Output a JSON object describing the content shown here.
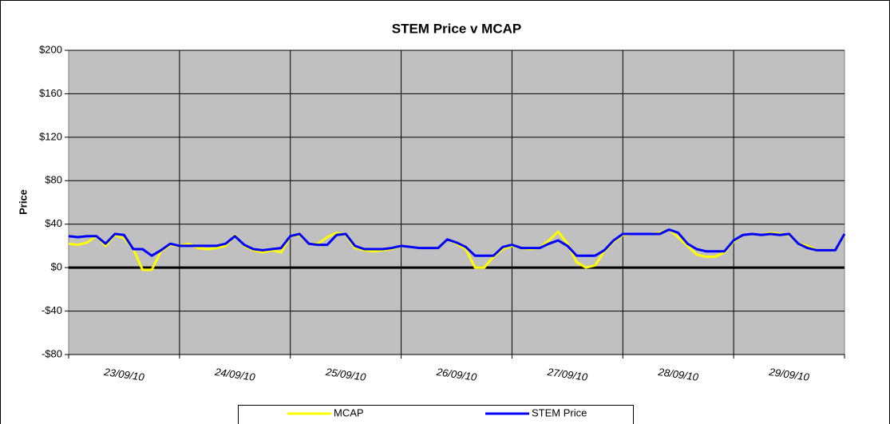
{
  "chart_data": {
    "type": "line",
    "title": "STEM Price v MCAP",
    "y_label": "Price",
    "categories": [
      null,
      null,
      null,
      null,
      null,
      null,
      "23/09/10",
      null,
      null,
      null,
      null,
      null,
      null,
      null,
      null,
      null,
      null,
      null,
      "24/09/10",
      null,
      null,
      null,
      null,
      null,
      null,
      null,
      null,
      null,
      null,
      null,
      "25/09/10",
      null,
      null,
      null,
      null,
      null,
      null,
      null,
      null,
      null,
      null,
      null,
      "26/09/10",
      null,
      null,
      null,
      null,
      null,
      null,
      null,
      null,
      null,
      null,
      null,
      "27/09/10",
      null,
      null,
      null,
      null,
      null,
      null,
      null,
      null,
      null,
      null,
      null,
      "28/09/10",
      null,
      null,
      null,
      null,
      null,
      null,
      null,
      null,
      null,
      null,
      null,
      "29/09/10",
      null,
      null,
      null,
      null,
      null,
      null
    ],
    "series": [
      {
        "name": "MCAP",
        "color": "#ffff00",
        "values": [
          22,
          21,
          23,
          29,
          20,
          30,
          27,
          17,
          -2,
          -2,
          15,
          21,
          20,
          22,
          18,
          17,
          18,
          20,
          30,
          20,
          16,
          14,
          16,
          14,
          29,
          30,
          22,
          22,
          28,
          32,
          30,
          18,
          16,
          15,
          16,
          17,
          20,
          19,
          18,
          18,
          18,
          26,
          22,
          17,
          0,
          0,
          10,
          17,
          20,
          18,
          17,
          18,
          25,
          33,
          22,
          5,
          0,
          2,
          15,
          24,
          30,
          31,
          31,
          31,
          32,
          35,
          28,
          20,
          12,
          10,
          10,
          14,
          24,
          30,
          31,
          30,
          32,
          31,
          30,
          22,
          20,
          16,
          16,
          16,
          30
        ]
      },
      {
        "name": "STEM Price",
        "color": "#0000ff",
        "values": [
          29,
          28,
          29,
          29,
          22,
          31,
          30,
          17,
          17,
          11,
          16,
          22,
          20,
          20,
          20,
          20,
          20,
          22,
          29,
          21,
          17,
          16,
          17,
          18,
          29,
          31,
          22,
          21,
          21,
          30,
          31,
          20,
          17,
          17,
          17,
          18,
          20,
          19,
          18,
          18,
          18,
          26,
          23,
          19,
          11,
          11,
          11,
          19,
          21,
          18,
          18,
          18,
          22,
          25,
          20,
          11,
          11,
          11,
          16,
          25,
          31,
          31,
          31,
          31,
          31,
          35,
          32,
          22,
          17,
          15,
          15,
          15,
          25,
          30,
          31,
          30,
          31,
          30,
          31,
          22,
          18,
          16,
          16,
          16,
          31
        ]
      }
    ],
    "ylim": [
      -80,
      200
    ],
    "yticks": [
      {
        "value": -80,
        "label": "-$80"
      },
      {
        "value": -40,
        "label": "-$40"
      },
      {
        "value": 0,
        "label": "$0"
      },
      {
        "value": 40,
        "label": "$40"
      },
      {
        "value": 80,
        "label": "$80"
      },
      {
        "value": 120,
        "label": "$120"
      },
      {
        "value": 160,
        "label": "$160"
      },
      {
        "value": 200,
        "label": "$200"
      }
    ],
    "grid": true,
    "legend": "bottom"
  }
}
